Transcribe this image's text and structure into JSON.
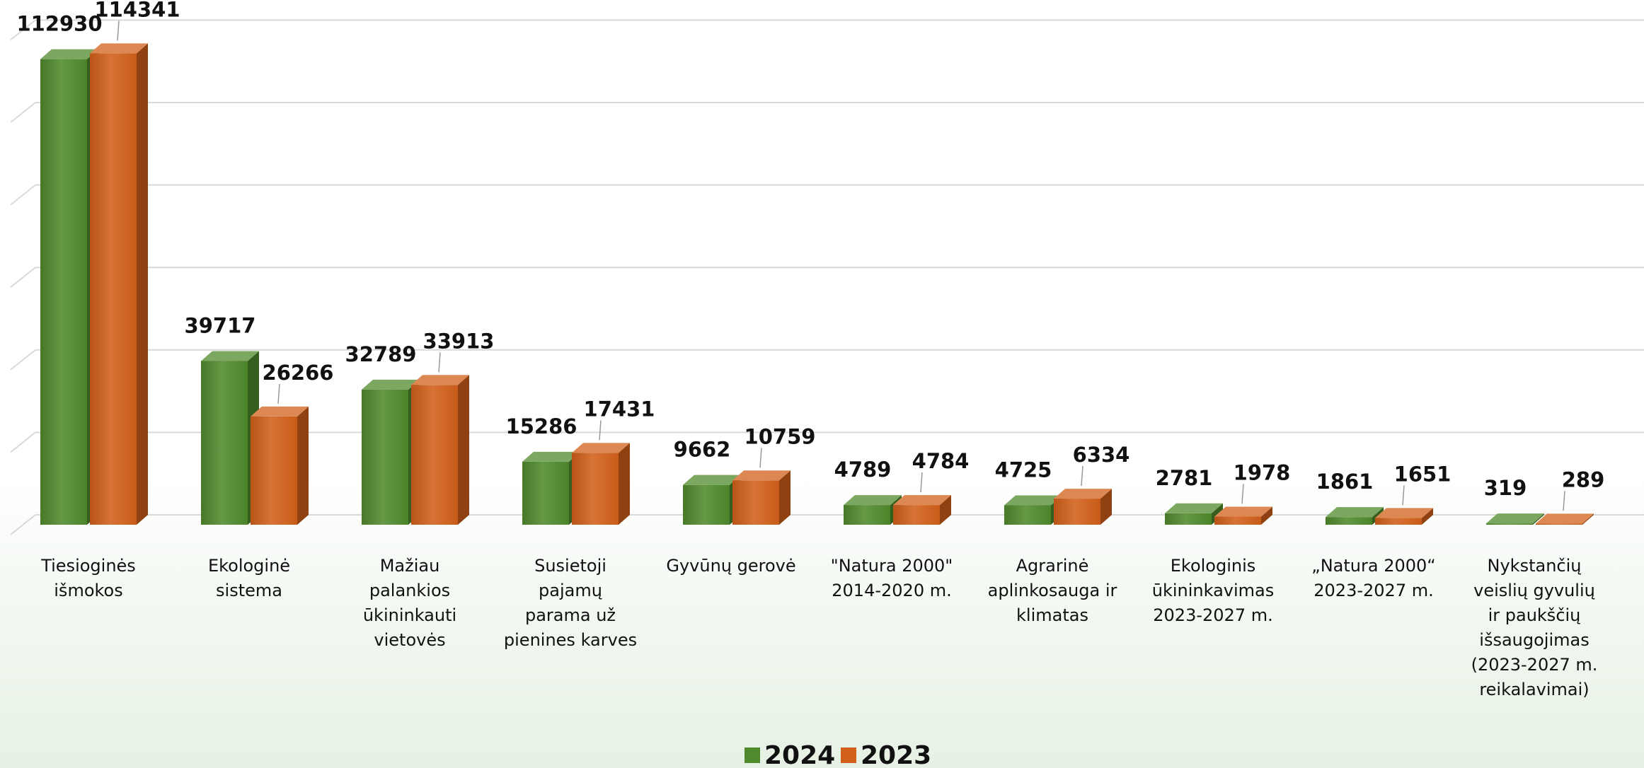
{
  "chart_data": {
    "type": "bar",
    "categories": [
      [
        "Tiesioginės",
        "išmokos"
      ],
      [
        "Ekologinė",
        "sistema"
      ],
      [
        "Mažiau",
        "palankios",
        "ūkininkauti",
        "vietovės"
      ],
      [
        "Susietoji",
        "pajamų",
        "parama už",
        "pienines karves"
      ],
      [
        "Gyvūnų gerovė"
      ],
      [
        "\"Natura 2000\"",
        "2014-2020 m."
      ],
      [
        "Agrarinė",
        "aplinkosauga ir",
        "klimatas"
      ],
      [
        "Ekologinis",
        "ūkininkavimas",
        "2023-2027 m."
      ],
      [
        "„Natura 2000“",
        "2023-2027 m."
      ],
      [
        "Nykstančių",
        "veislių gyvulių",
        "ir paukščių",
        "išsaugojimas",
        "(2023-2027 m.",
        "reikalavimai)"
      ]
    ],
    "series": [
      {
        "name": "2024",
        "color": "#4f8a2c",
        "values": [
          112930,
          39717,
          32789,
          15286,
          9662,
          4789,
          4725,
          2781,
          1861,
          319
        ]
      },
      {
        "name": "2023",
        "color": "#d2601a",
        "values": [
          114341,
          26266,
          33913,
          17431,
          10759,
          4784,
          6334,
          1978,
          1651,
          289
        ]
      }
    ],
    "ylim": [
      0,
      120000
    ],
    "grid": true,
    "legend": "bottom"
  }
}
